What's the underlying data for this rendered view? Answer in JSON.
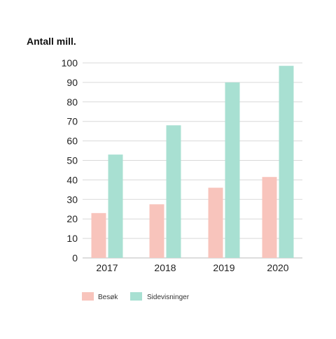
{
  "chart_data": {
    "type": "bar",
    "ylabel": "Antall mill.",
    "categories": [
      "2017",
      "2018",
      "2019",
      "2020"
    ],
    "series": [
      {
        "name": "Besøk",
        "values": [
          23,
          27.5,
          36,
          41.5
        ],
        "color": "#f8c4bc"
      },
      {
        "name": "Sidevisninger",
        "values": [
          53,
          68,
          90,
          98.5
        ],
        "color": "#a8e0d2"
      }
    ],
    "ylim": [
      0,
      100
    ],
    "yticks": [
      "0",
      "10",
      "20",
      "30",
      "40",
      "50",
      "60",
      "70",
      "80",
      "90",
      "100"
    ],
    "grid": true,
    "legend": "bottom-left",
    "gridColor": "#d9d9d9",
    "axisColor": "#bbbbbb"
  }
}
